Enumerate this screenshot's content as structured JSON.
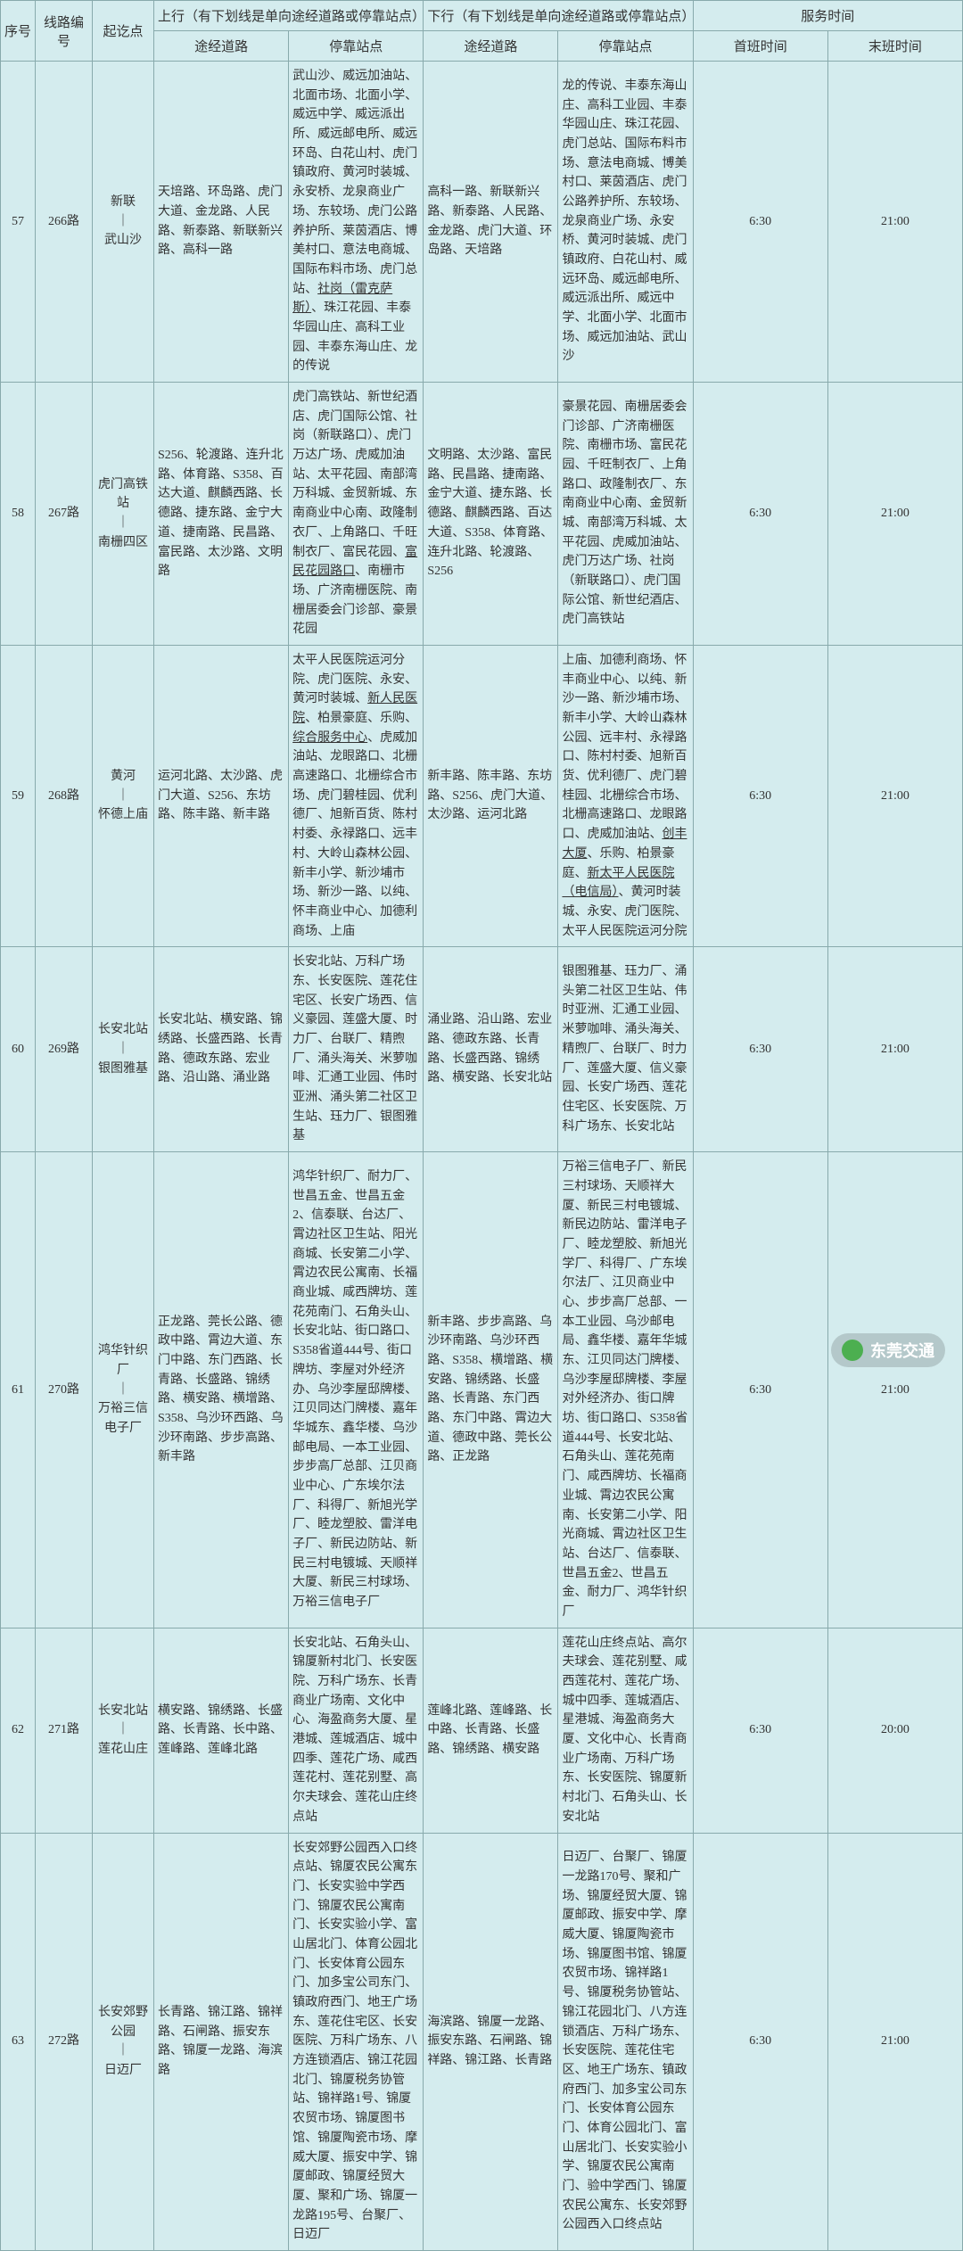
{
  "headers": {
    "seq": "序号",
    "route": "线路编号",
    "endpoint": "起讫点",
    "up_section": "上行（有下划线是单向途经道路或停靠站点）",
    "down_section": "下行（有下划线是单向途经道路或停靠站点）",
    "time_section": "服务时间",
    "roads": "途经道路",
    "stops": "停靠站点",
    "first": "首班时间",
    "last": "末班时间"
  },
  "rows": [
    {
      "seq": "57",
      "route": "266路",
      "endpoint_a": "新联",
      "endpoint_b": "武山沙",
      "up_roads": "天培路、环岛路、虎门大道、金龙路、人民路、新泰路、新联新兴路、高科一路",
      "up_stops_pre": "武山沙、威远加油站、北面市场、北面小学、威远中学、威远派出所、威远邮电所、威远环岛、白花山村、虎门镇政府、黄河时装城、永安桥、龙泉商业广场、东较场、虎门公路养护所、莱茵酒店、博美村口、意法电商城、国际布料市场、虎门总站、",
      "up_stops_u": "社岗（雷克萨斯）",
      "up_stops_post": "、珠江花园、丰泰华园山庄、高科工业园、丰泰东海山庄、龙的传说",
      "down_roads": "高科一路、新联新兴路、新泰路、人民路、金龙路、虎门大道、环岛路、天培路",
      "down_stops": "龙的传说、丰泰东海山庄、高科工业园、丰泰华园山庄、珠江花园、虎门总站、国际布料市场、意法电商城、博美村口、莱茵酒店、虎门公路养护所、东较场、龙泉商业广场、永安桥、黄河时装城、虎门镇政府、白花山村、威远环岛、威远邮电所、威远派出所、威远中学、北面小学、北面市场、威远加油站、武山沙",
      "first": "6:30",
      "last": "21:00"
    },
    {
      "seq": "58",
      "route": "267路",
      "endpoint_a": "虎门高铁站",
      "endpoint_b": "南栅四区",
      "up_roads": "S256、轮渡路、连升北路、体育路、S358、百达大道、麒麟西路、长德路、捷东路、金宁大道、捷南路、民昌路、富民路、太沙路、文明路",
      "up_stops_pre": "虎门高铁站、新世纪酒店、虎门国际公馆、社岗（新联路口）、虎门万达广场、虎威加油站、太平花园、南部湾万科城、金贸新城、东南商业中心南、政隆制衣厂、上角路口、千旺制衣厂、富民花园、",
      "up_stops_u": "富民花园路口",
      "up_stops_post": "、南栅市场、广济南栅医院、南栅居委会门诊部、豪景花园",
      "down_roads": "文明路、太沙路、富民路、民昌路、捷南路、金宁大道、捷东路、长德路、麒麟西路、百达大道、S358、体育路、连升北路、轮渡路、S256",
      "down_stops": "豪景花园、南栅居委会门诊部、广济南栅医院、南栅市场、富民花园、千旺制衣厂、上角路口、政隆制衣厂、东南商业中心南、金贸新城、南部湾万科城、太平花园、虎威加油站、虎门万达广场、社岗（新联路口）、虎门国际公馆、新世纪酒店、虎门高铁站",
      "first": "6:30",
      "last": "21:00"
    },
    {
      "seq": "59",
      "route": "268路",
      "endpoint_a": "黄河",
      "endpoint_b": "怀德上庙",
      "up_roads": "运河北路、太沙路、虎门大道、S256、东坊路、陈丰路、新丰路",
      "up_stops_pre": "太平人民医院运河分院、虎门医院、永安、黄河时装城、",
      "up_stops_u": "新人民医院",
      "up_stops_mid1": "、柏景豪庭、乐购、",
      "up_stops_u2": "综合服务中心",
      "up_stops_post": "、虎威加油站、龙眼路口、北栅高速路口、北栅综合市场、虎门碧桂园、优利德厂、旭新百货、陈村村委、永禄路口、远丰村、大岭山森林公园、新丰小学、新沙埔市场、新沙一路、以纯、怀丰商业中心、加德利商场、上庙",
      "down_roads": "新丰路、陈丰路、东坊路、S256、虎门大道、太沙路、运河北路",
      "down_stops_pre": "上庙、加德利商场、怀丰商业中心、以纯、新沙一路、新沙埔市场、新丰小学、大岭山森林公园、远丰村、永禄路口、陈村村委、旭新百货、优利德厂、虎门碧桂园、北栅综合市场、北栅高速路口、龙眼路口、虎威加油站、",
      "down_stops_u1": "创丰大厦",
      "down_stops_mid1": "、乐购、柏景豪庭、",
      "down_stops_u2": "新太平人民医院（电信局）",
      "down_stops_post": "、黄河时装城、永安、虎门医院、太平人民医院运河分院",
      "first": "6:30",
      "last": "21:00"
    },
    {
      "seq": "60",
      "route": "269路",
      "endpoint_a": "长安北站",
      "endpoint_b": "银图雅基",
      "up_roads": "长安北站、横安路、锦绣路、长盛西路、长青路、德政东路、宏业路、沿山路、涌业路",
      "up_stops": "长安北站、万科广场东、长安医院、莲花住宅区、长安广场西、信义豪园、莲盛大厦、时力厂、台联厂、精煦厂、涌头海关、米萝咖啡、汇通工业园、伟时亚洲、涌头第二社区卫生站、珏力厂、银图雅基",
      "down_roads": "涌业路、沿山路、宏业路、德政东路、长青路、长盛西路、锦绣路、横安路、长安北站",
      "down_stops": "银图雅基、珏力厂、涌头第二社区卫生站、伟时亚洲、汇通工业园、米萝咖啡、涌头海关、精煦厂、台联厂、时力厂、莲盛大厦、信义豪园、长安广场西、莲花住宅区、长安医院、万科广场东、长安北站",
      "first": "6:30",
      "last": "21:00"
    },
    {
      "seq": "61",
      "route": "270路",
      "endpoint_a": "鸿华针织厂",
      "endpoint_b": "万裕三信电子厂",
      "up_roads": "正龙路、莞长公路、德政中路、霄边大道、东门中路、东门西路、长青路、长盛路、锦绣路、横安路、横增路、S358、乌沙环西路、乌沙环南路、步步高路、新丰路",
      "up_stops": "鸿华针织厂、耐力厂、世昌五金、世昌五金2、信泰联、台达厂、霄边社区卫生站、阳光商城、长安第二小学、霄边农民公寓南、长福商业城、咸西牌坊、莲花苑南门、石角头山、长安北站、街口路口、S358省道444号、街口牌坊、李屋对外经济办、乌沙李屋邸牌楼、江贝同达门牌楼、嘉年华城东、鑫华楼、乌沙邮电局、一本工业园、步步高厂总部、江贝商业中心、广东埃尔法厂、科得厂、新旭光学厂、睦龙塑胶、雷洋电子厂、新民边防站、新民三村电镀城、天顺祥大厦、新民三村球场、万裕三信电子厂",
      "down_roads": "新丰路、步步高路、乌沙环南路、乌沙环西路、S358、横增路、横安路、锦绣路、长盛路、长青路、东门西路、东门中路、霄边大道、德政中路、莞长公路、正龙路",
      "down_stops": "万裕三信电子厂、新民三村球场、天顺祥大厦、新民三村电镀城、新民边防站、雷洋电子厂、睦龙塑胶、新旭光学厂、科得厂、广东埃尔法厂、江贝商业中心、步步高厂总部、一本工业园、乌沙邮电局、鑫华楼、嘉年华城东、江贝同达门牌楼、乌沙李屋邸牌楼、李屋对外经济办、街口牌坊、街口路口、S358省道444号、长安北站、石角头山、莲花苑南门、咸西牌坊、长福商业城、霄边农民公寓南、长安第二小学、阳光商城、霄边社区卫生站、台达厂、信泰联、世昌五金2、世昌五金、耐力厂、鸿华针织厂",
      "first": "6:30",
      "last": "21:00"
    },
    {
      "seq": "62",
      "route": "271路",
      "endpoint_a": "长安北站",
      "endpoint_b": "莲花山庄",
      "up_roads": "横安路、锦绣路、长盛路、长青路、长中路、莲峰路、莲峰北路",
      "up_stops": "长安北站、石角头山、锦厦新村北门、长安医院、万科广场东、长青商业广场南、文化中心、海盈商务大厦、星港城、莲城酒店、城中四季、莲花广场、咸西莲花村、莲花别墅、高尔夫球会、莲花山庄终点站",
      "down_roads": "莲峰北路、莲峰路、长中路、长青路、长盛路、锦绣路、横安路",
      "down_stops": "莲花山庄终点站、高尔夫球会、莲花别墅、咸西莲花村、莲花广场、城中四季、莲城酒店、星港城、海盈商务大厦、文化中心、长青商业广场南、万科广场东、长安医院、锦厦新村北门、石角头山、长安北站",
      "first": "6:30",
      "last": "20:00"
    },
    {
      "seq": "63",
      "route": "272路",
      "endpoint_a": "长安郊野公园",
      "endpoint_b": "日迈厂",
      "up_roads": "长青路、锦江路、锦祥路、石闸路、振安东路、锦厦一龙路、海滨路",
      "up_stops": "长安郊野公园西入口终点站、锦厦农民公寓东门、长安实验中学西门、锦厦农民公寓南门、长安实验小学、富山居北门、体育公园北门、长安体育公园东门、加多宝公司东门、镇政府西门、地王广场东、莲花住宅区、长安医院、万科广场东、八方连锁酒店、锦江花园北门、锦厦税务协管站、锦祥路1号、锦厦农贸市场、锦厦图书馆、锦厦陶瓷市场、摩威大厦、振安中学、锦厦邮政、锦厦经贸大厦、聚和广场、锦厦一龙路195号、台聚厂、日迈厂",
      "down_roads": "海滨路、锦厦一龙路、振安东路、石闸路、锦祥路、锦江路、长青路",
      "down_stops": "日迈厂、台聚厂、锦厦一龙路170号、聚和广场、锦厦经贸大厦、锦厦邮政、振安中学、摩威大厦、锦厦陶瓷市场、锦厦图书馆、锦厦农贸市场、锦祥路1号、锦厦税务协管站、锦江花园北门、八方连锁酒店、万科广场东、长安医院、莲花住宅区、地王广场东、镇政府西门、加多宝公司东门、长安体育公园东门、体育公园北门、富山居北门、长安实验小学、锦厦农民公寓南门、验中学西门、锦厦农民公寓东、长安郊野公园西入口终点站",
      "first": "6:30",
      "last": "21:00"
    }
  ],
  "watermark": "东莞交通",
  "style": {
    "header_bg": "#d4ecee",
    "cell_bg": "#d4ecee",
    "border_color": "#88aaac",
    "font_size": 14,
    "header_font_size": 15,
    "text_color": "#333"
  }
}
